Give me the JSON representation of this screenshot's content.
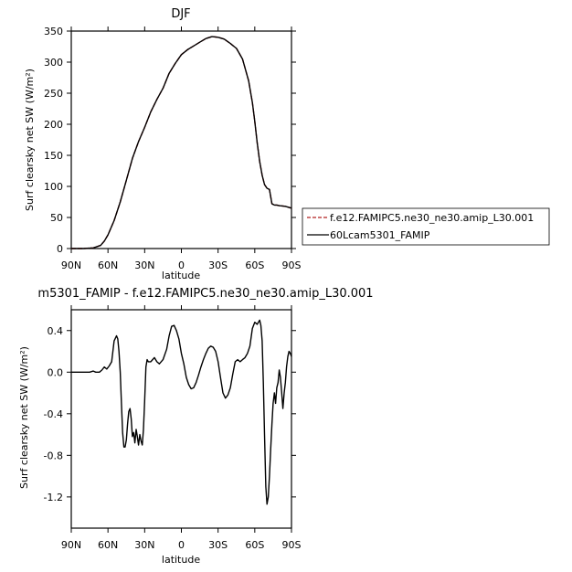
{
  "chart_data": [
    {
      "type": "line",
      "title": "DJF",
      "xlabel": "latitude",
      "ylabel": "Surf clearsky net SW (W/m²)",
      "xlim": [
        90,
        -90
      ],
      "ylim": [
        0,
        350
      ],
      "x_ticks": [
        90,
        60,
        30,
        0,
        -30,
        -60,
        -90
      ],
      "x_tick_labels": [
        "90N",
        "60N",
        "30N",
        "0",
        "30S",
        "60S",
        "90S"
      ],
      "y_ticks": [
        0,
        50,
        100,
        150,
        200,
        250,
        300,
        350
      ],
      "y_tick_labels": [
        "0",
        "50",
        "100",
        "150",
        "200",
        "250",
        "300",
        "350"
      ],
      "legend_position": "right",
      "series": [
        {
          "name": "f.e12.FAMIPC5.ne30_ne30.amip_L30.001",
          "color": "#b22222",
          "dash": true,
          "x": [
            90,
            80,
            72,
            66,
            63,
            60,
            55,
            50,
            45,
            40,
            35,
            30,
            25,
            20,
            15,
            10,
            5,
            0,
            -5,
            -10,
            -15,
            -20,
            -25,
            -30,
            -35,
            -40,
            -45,
            -50,
            -55,
            -58,
            -60,
            -62,
            -64,
            -66,
            -68,
            -70,
            -72,
            -74,
            -76,
            -78,
            -80,
            -85,
            -90
          ],
          "y": [
            0,
            0,
            1,
            5,
            12,
            22,
            45,
            75,
            110,
            145,
            172,
            195,
            220,
            240,
            258,
            282,
            298,
            312,
            320,
            326,
            332,
            338,
            341,
            340,
            337,
            330,
            322,
            305,
            270,
            235,
            205,
            170,
            140,
            118,
            103,
            97,
            95,
            72,
            70,
            70,
            69,
            68,
            65
          ]
        },
        {
          "name": "60Lcam5301_FAMIP",
          "color": "#000000",
          "dash": false,
          "x": [
            90,
            80,
            72,
            66,
            63,
            60,
            55,
            50,
            45,
            40,
            35,
            30,
            25,
            20,
            15,
            10,
            5,
            0,
            -5,
            -10,
            -15,
            -20,
            -25,
            -30,
            -35,
            -40,
            -45,
            -50,
            -55,
            -58,
            -60,
            -62,
            -64,
            -66,
            -68,
            -70,
            -72,
            -74,
            -76,
            -78,
            -80,
            -85,
            -90
          ],
          "y": [
            0,
            0,
            1,
            5,
            12,
            22,
            45,
            75,
            110,
            145,
            172,
            195,
            220,
            240,
            258,
            282,
            298,
            312,
            320,
            326,
            332,
            338,
            341,
            340,
            337,
            330,
            322,
            305,
            270,
            235,
            205,
            170,
            140,
            118,
            103,
            97,
            95,
            72,
            70,
            70,
            69,
            68,
            65
          ]
        }
      ]
    },
    {
      "type": "line",
      "title": "m5301_FAMIP - f.e12.FAMIPC5.ne30_ne30.amip_L30.001",
      "xlabel": "latitude",
      "ylabel": "Surf clearsky net SW (W/m²)",
      "xlim": [
        90,
        -90
      ],
      "ylim": [
        -1.5,
        0.6
      ],
      "x_ticks": [
        90,
        60,
        30,
        0,
        -30,
        -60,
        -90
      ],
      "x_tick_labels": [
        "90N",
        "60N",
        "30N",
        "0",
        "30S",
        "60S",
        "90S"
      ],
      "y_ticks": [
        0.4,
        0.0,
        -0.4,
        -0.8,
        -1.2
      ],
      "y_tick_labels": [
        "0.4",
        "0.0",
        "-0.4",
        "-0.8",
        "-1.2"
      ],
      "series": [
        {
          "color": "#000000",
          "dash": false,
          "x": [
            90,
            85,
            80,
            75,
            72,
            70,
            67,
            65,
            63,
            61,
            59,
            57,
            55,
            53,
            52,
            51,
            50,
            49,
            48,
            47,
            46,
            45,
            44,
            43,
            42,
            41,
            40,
            39,
            38,
            37,
            36,
            35,
            34,
            33,
            32,
            31,
            30,
            29,
            28,
            27,
            25,
            22,
            20,
            18,
            15,
            12,
            10,
            8,
            6,
            4,
            2,
            0,
            -2,
            -4,
            -6,
            -8,
            -10,
            -12,
            -14,
            -16,
            -18,
            -20,
            -22,
            -24,
            -26,
            -28,
            -30,
            -32,
            -34,
            -36,
            -38,
            -40,
            -42,
            -44,
            -46,
            -48,
            -50,
            -52,
            -54,
            -56,
            -58,
            -60,
            -62,
            -64,
            -65,
            -66,
            -67,
            -68,
            -69,
            -70,
            -71,
            -72,
            -73,
            -74,
            -75,
            -76,
            -77,
            -78,
            -79,
            -80,
            -81,
            -82,
            -83,
            -84,
            -85,
            -86,
            -87,
            -88,
            -89,
            -90
          ],
          "y": [
            0.0,
            0.0,
            0.0,
            0.0,
            0.01,
            0.0,
            0.0,
            0.02,
            0.05,
            0.03,
            0.06,
            0.1,
            0.3,
            0.35,
            0.32,
            0.2,
            0.0,
            -0.3,
            -0.58,
            -0.72,
            -0.72,
            -0.65,
            -0.5,
            -0.38,
            -0.35,
            -0.45,
            -0.62,
            -0.58,
            -0.68,
            -0.55,
            -0.62,
            -0.7,
            -0.6,
            -0.66,
            -0.7,
            -0.55,
            -0.28,
            0.05,
            0.12,
            0.1,
            0.1,
            0.14,
            0.1,
            0.08,
            0.12,
            0.22,
            0.35,
            0.44,
            0.45,
            0.4,
            0.32,
            0.18,
            0.08,
            -0.05,
            -0.12,
            -0.16,
            -0.15,
            -0.1,
            -0.03,
            0.05,
            0.12,
            0.18,
            0.23,
            0.25,
            0.24,
            0.2,
            0.1,
            -0.05,
            -0.2,
            -0.25,
            -0.22,
            -0.15,
            -0.02,
            0.1,
            0.12,
            0.1,
            0.12,
            0.14,
            0.18,
            0.25,
            0.42,
            0.48,
            0.46,
            0.5,
            0.45,
            0.3,
            -0.1,
            -0.6,
            -1.1,
            -1.27,
            -1.2,
            -1.0,
            -0.75,
            -0.5,
            -0.3,
            -0.2,
            -0.3,
            -0.15,
            -0.1,
            0.02,
            -0.05,
            -0.2,
            -0.35,
            -0.2,
            -0.1,
            0.05,
            0.15,
            0.2,
            0.18,
            0.15
          ]
        }
      ]
    }
  ]
}
